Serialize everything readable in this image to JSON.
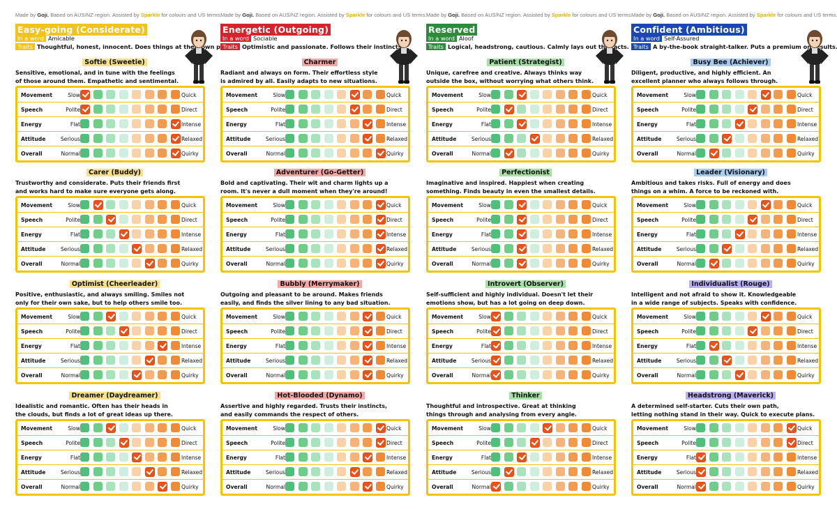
{
  "credit": {
    "prefix": "Made by ",
    "author": "Goji.",
    "mid": " Based on AUS/NZ region. Assisted by ",
    "assistant": "Sparkle",
    "suffix": " for colours and US terms."
  },
  "labels": {
    "in_a_word": "In a word",
    "traits": "Traits"
  },
  "attribute_rows": [
    {
      "name": "Movement",
      "low": "Slow",
      "high": "Quick"
    },
    {
      "name": "Speech",
      "low": "Polite",
      "high": "Direct"
    },
    {
      "name": "Energy",
      "low": "Flat",
      "high": "Intense"
    },
    {
      "name": "Attitude",
      "low": "Serious",
      "high": "Relaxed"
    },
    {
      "name": "Overall",
      "low": "Normal",
      "high": "Quirky"
    }
  ],
  "scale_colors": [
    "#4fbf7a",
    "#6fcd8a",
    "#a9e3bd",
    "#cfeedd",
    "#f9d2a8",
    "#f6b47a",
    "#f39a4c",
    "#f08a34"
  ],
  "categories": [
    {
      "title": "Easy-going (Considerate)",
      "color": "#f2c31d",
      "tag_color": "#f2c31d",
      "in_a_word": "Amicable",
      "traits": "Thoughtful, honest, innocent. Does things at their own pace.",
      "types": [
        {
          "name": "Softie (Sweetie)",
          "label_bg": "#f6e08a",
          "desc": [
            "Sensitive, emotional, and in tune with the feelings",
            "of those around them. Empathetic and sentimental."
          ],
          "ratings": [
            1,
            1,
            8,
            8,
            8
          ]
        },
        {
          "name": "Carer (Buddy)",
          "label_bg": "#f6e08a",
          "desc": [
            "Trustworthy and considerate. Puts their friends first",
            "and works hard to make sure everyone gets along."
          ],
          "ratings": [
            2,
            3,
            4,
            5,
            6
          ]
        },
        {
          "name": "Optimist (Cheerleader)",
          "label_bg": "#f6e08a",
          "desc": [
            "Positive, enthusiastic, and always smiling. Smiles not",
            "only for their own sake, but to help others smile too."
          ],
          "ratings": [
            3,
            4,
            7,
            6,
            5
          ]
        },
        {
          "name": "Dreamer (Daydreamer)",
          "label_bg": "#f6e08a",
          "desc": [
            "Idealistic and romantic. Often has their heads in",
            "the clouds, but finds a lot of great ideas up there."
          ],
          "ratings": [
            3,
            4,
            5,
            6,
            7
          ]
        }
      ]
    },
    {
      "title": "Energetic (Outgoing)",
      "color": "#d6242c",
      "tag_color": "#d6242c",
      "in_a_word": "Sociable",
      "traits": "Optimistic and passionate. Follows their instincts.",
      "types": [
        {
          "name": "Charmer",
          "label_bg": "#f3a8a8",
          "desc": [
            "Radiant and always on form. Their effortless style",
            "is admired by all. Easily adapts to new situations."
          ],
          "ratings": [
            6,
            6,
            7,
            7,
            8
          ]
        },
        {
          "name": "Adventurer (Go-Getter)",
          "label_bg": "#f3a8a8",
          "desc": [
            "Bold and captivating. Their wit and charm lights up a",
            "room. It's never a dull moment when they're around!"
          ],
          "ratings": [
            8,
            8,
            8,
            8,
            8
          ]
        },
        {
          "name": "Bubbly (Merrymaker)",
          "label_bg": "#f3a8a8",
          "desc": [
            "Outgoing and pleasant to be around. Makes friends",
            "easily, and finds the silver lining to any bad situation."
          ],
          "ratings": [
            7,
            7,
            7,
            7,
            7
          ]
        },
        {
          "name": "Hot-Blooded (Dynamo)",
          "label_bg": "#f3a8a8",
          "desc": [
            "Assertive and highly regarded. Trusts their instincts,",
            "and easily commands the respect of others."
          ],
          "ratings": [
            8,
            8,
            7,
            6,
            7
          ]
        }
      ]
    },
    {
      "title": "Reserved",
      "color": "#2e8b3c",
      "tag_color": "#2e8b3c",
      "in_a_word": "Aloof",
      "traits": "Logical, headstrong, cautious. Calmly lays out the facts.",
      "types": [
        {
          "name": "Patient (Strategist)",
          "label_bg": "#a8e0a8",
          "desc": [
            "Unique, carefree and creative. Always thinks way",
            "outside the box, without worrying what others think."
          ],
          "ratings": [
            3,
            2,
            3,
            4,
            2
          ]
        },
        {
          "name": "Perfectionist",
          "label_bg": "#a8e0a8",
          "desc": [
            "Imaginative and inspired. Happiest when creating",
            "something. Finds beauty in even the smallest details."
          ],
          "ratings": [
            3,
            3,
            3,
            3,
            3
          ]
        },
        {
          "name": "Introvert (Observer)",
          "label_bg": "#a8e0a8",
          "desc": [
            "Self-sufficient and highly individual. Doesn't let their",
            "emotions show, but has a lot going on deep down."
          ],
          "ratings": [
            1,
            1,
            1,
            1,
            1
          ]
        },
        {
          "name": "Thinker",
          "label_bg": "#a8e0a8",
          "desc": [
            "Thoughtful and introspective. Great at thinking",
            "things through and analysing from every angle."
          ],
          "ratings": [
            5,
            4,
            3,
            2,
            1
          ]
        }
      ]
    },
    {
      "title": "Confident (Ambitious)",
      "color": "#1b47b5",
      "tag_color": "#1b47b5",
      "in_a_word": "Self-Assured",
      "traits": "A by-the-book straight-talker. Puts a premium on results.",
      "types": [
        {
          "name": "Busy Bee (Achiever)",
          "label_bg": "#a8ccf0",
          "desc": [
            "Diligent, productive, and highly efficient. An",
            "excellent planner who always follows through."
          ],
          "ratings": [
            6,
            5,
            4,
            3,
            2
          ]
        },
        {
          "name": "Leader (Visionary)",
          "label_bg": "#a8ccf0",
          "desc": [
            "Ambitious and takes risks. Full of energy and does",
            "things on a whim. A force to be reckoned with."
          ],
          "ratings": [
            6,
            5,
            4,
            3,
            2
          ]
        },
        {
          "name": "Individualist (Rouge)",
          "label_bg": "#b8b0f0",
          "desc": [
            "Intelligent and not afraid to show it. Knowledgeable",
            "in a wide range of subjects. Speaks with confidence."
          ],
          "ratings": [
            6,
            5,
            2,
            3,
            4
          ]
        },
        {
          "name": "Headstrong (Maverick)",
          "label_bg": "#b8b0f0",
          "desc": [
            "A determined self-starter. Cuts their own path,",
            "letting nothing stand in their way. Quick to execute plans."
          ],
          "ratings": [
            8,
            8,
            1,
            1,
            1
          ]
        }
      ]
    }
  ]
}
